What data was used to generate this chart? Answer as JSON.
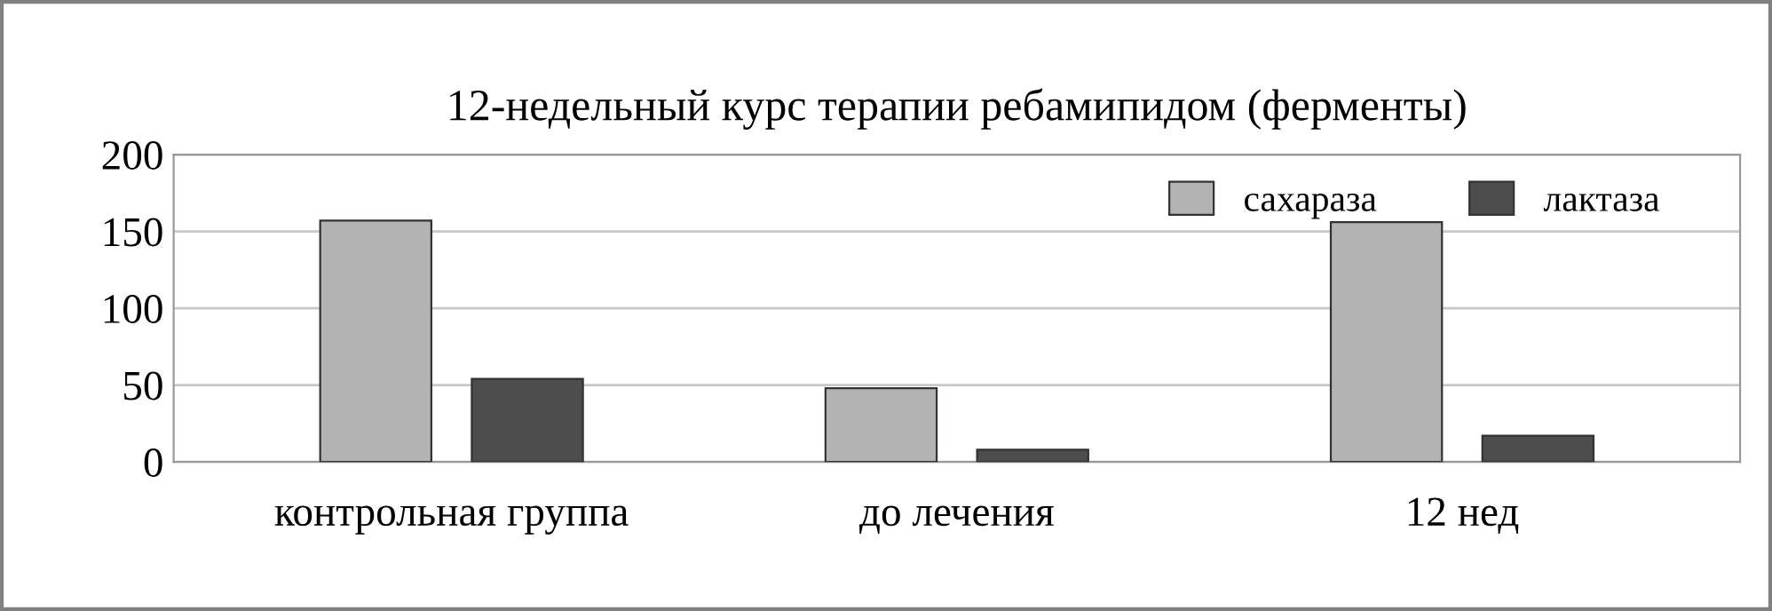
{
  "chart_data": {
    "type": "bar",
    "title": "12-недельный курс терапии ребамипидом (ферменты)",
    "categories": [
      "контрольная группа",
      "до лечения",
      "12 нед"
    ],
    "series": [
      {
        "name": "сахараза",
        "color": "#b3b3b3",
        "values": [
          157,
          48,
          156
        ]
      },
      {
        "name": "лактаза",
        "color": "#4d4d4d",
        "values": [
          54,
          8,
          17
        ]
      }
    ],
    "ylim": [
      0,
      200
    ],
    "yticks": [
      0,
      50,
      100,
      150,
      200
    ],
    "grid": "y",
    "legend": "top right"
  }
}
